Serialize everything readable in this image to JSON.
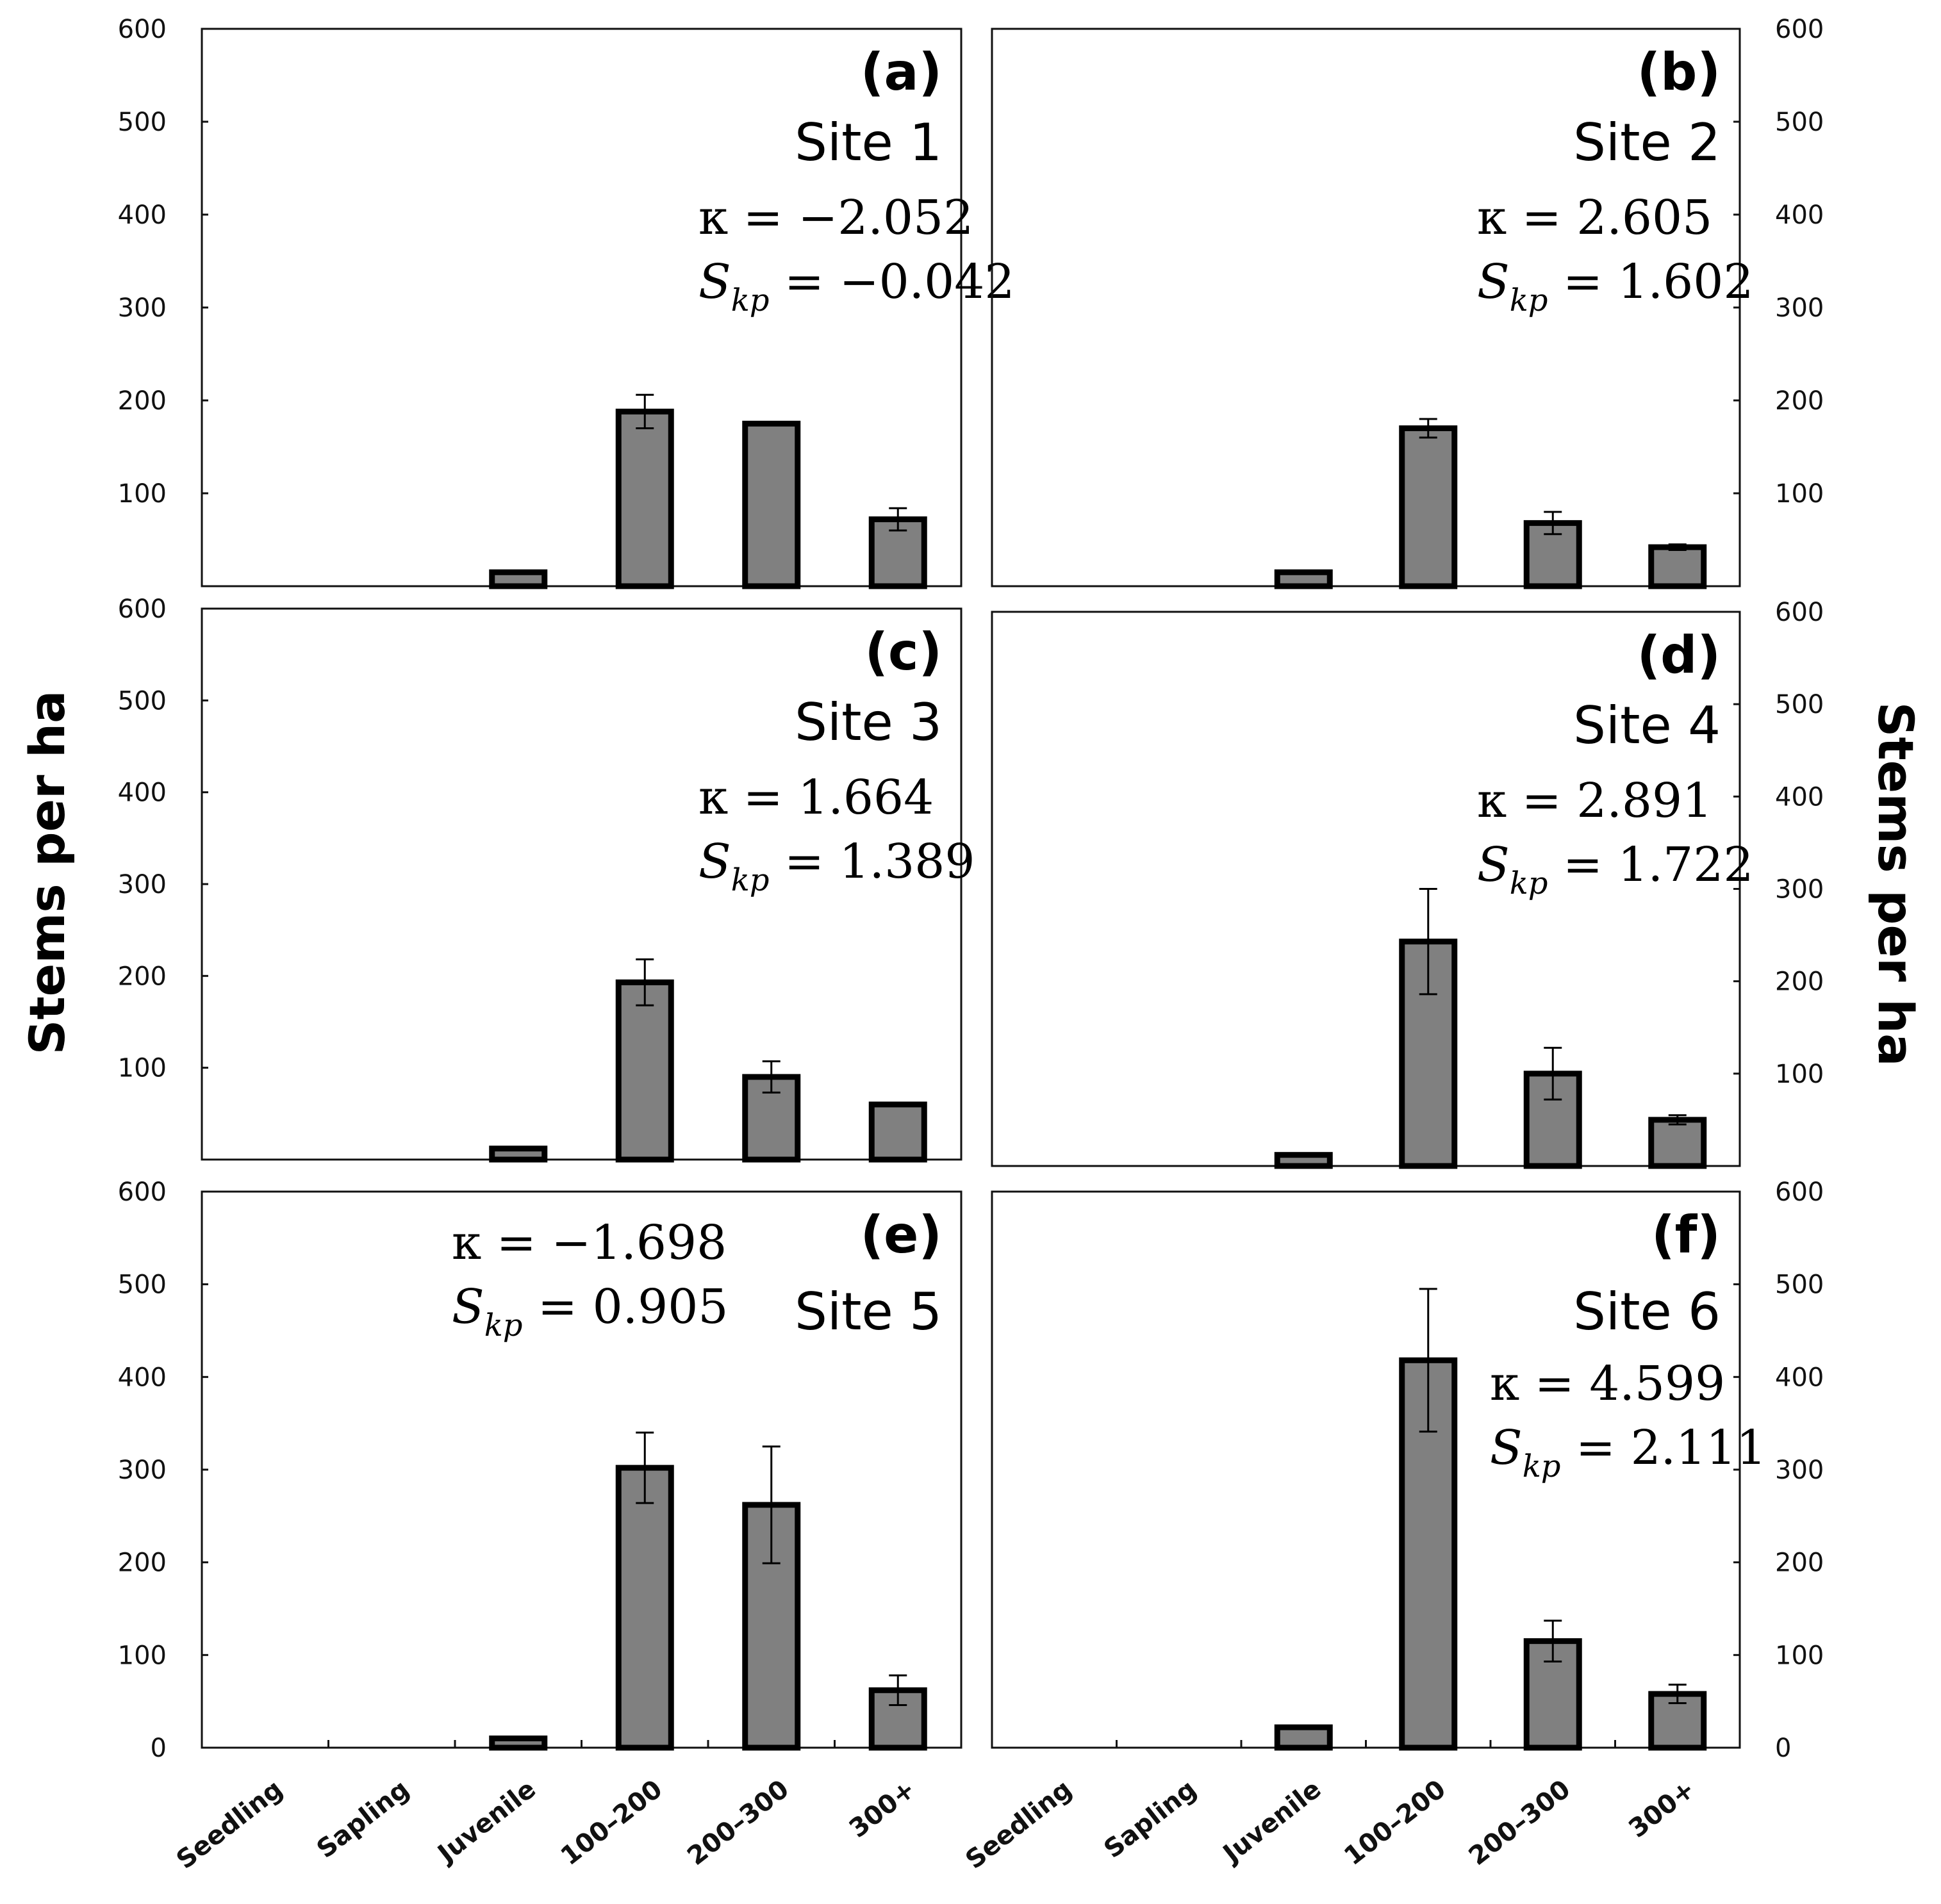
{
  "figure": {
    "ylabel_left": "Stems per ha",
    "ylabel_right": "Stems per ha"
  },
  "chart_data": [
    {
      "type": "bar",
      "panel": "(a)",
      "title": "Site 1",
      "kappa_label": "κ = −2.052",
      "skp_symbol": "S",
      "skp_sub": "kp",
      "skp_value": " = −0.042",
      "categories": [
        "Seedling",
        "Sapling",
        "Juvenile",
        "100–200",
        "200–300",
        "300+"
      ],
      "values": [
        0,
        0,
        15,
        188,
        175,
        72
      ],
      "errors": [
        0,
        0,
        0,
        18,
        0,
        12
      ],
      "ylim": [
        0,
        600
      ],
      "yticks": [
        "600",
        "500",
        "400",
        "300",
        "200",
        "100"
      ],
      "ylabel": "Stems per ha",
      "xlabel": ""
    },
    {
      "type": "bar",
      "panel": "(b)",
      "title": "Site 2",
      "kappa_label": "κ = 2.605",
      "skp_symbol": "S",
      "skp_sub": "kp",
      "skp_value": " = 1.602",
      "categories": [
        "Seedling",
        "Sapling",
        "Juvenile",
        "100–200",
        "200–300",
        "300+"
      ],
      "values": [
        0,
        0,
        15,
        170,
        68,
        42
      ],
      "errors": [
        0,
        0,
        0,
        10,
        12,
        3
      ],
      "ylim": [
        0,
        600
      ],
      "yticks": [
        "600",
        "500",
        "400",
        "300",
        "200",
        "100"
      ],
      "ylabel": "Stems per ha",
      "xlabel": ""
    },
    {
      "type": "bar",
      "panel": "(c)",
      "title": "Site 3",
      "kappa_label": "κ = 1.664",
      "skp_symbol": "S",
      "skp_sub": "kp",
      "skp_value": " = 1.389",
      "categories": [
        "Seedling",
        "Sapling",
        "Juvenile",
        "100–200",
        "200–300",
        "300+"
      ],
      "values": [
        0,
        0,
        12,
        193,
        90,
        60
      ],
      "errors": [
        0,
        0,
        0,
        25,
        17,
        0
      ],
      "ylim": [
        0,
        600
      ],
      "yticks": [
        "600",
        "500",
        "400",
        "300",
        "200",
        "100"
      ],
      "ylabel": "Stems per ha",
      "xlabel": ""
    },
    {
      "type": "bar",
      "panel": "(d)",
      "title": "Site 4",
      "kappa_label": "κ = 2.891",
      "skp_symbol": "S",
      "skp_sub": "kp",
      "skp_value": " = 1.722",
      "categories": [
        "Seedling",
        "Sapling",
        "Juvenile",
        "100–200",
        "200–300",
        "300+"
      ],
      "values": [
        0,
        0,
        12,
        243,
        100,
        50
      ],
      "errors": [
        0,
        0,
        0,
        57,
        28,
        5
      ],
      "ylim": [
        0,
        600
      ],
      "yticks": [
        "600",
        "500",
        "400",
        "300",
        "200",
        "100"
      ],
      "ylabel": "Stems per ha",
      "xlabel": ""
    },
    {
      "type": "bar",
      "panel": "(e)",
      "title": "Site 5",
      "kappa_label": "κ = −1.698",
      "skp_symbol": "S",
      "skp_sub": "kp",
      "skp_value": " = 0.905",
      "categories": [
        "Seedling",
        "Sapling",
        "Juvenile",
        "100–200",
        "200–300",
        "300+"
      ],
      "values": [
        0,
        0,
        10,
        302,
        262,
        62
      ],
      "errors": [
        0,
        0,
        0,
        38,
        63,
        16
      ],
      "ylim": [
        0,
        600
      ],
      "yticks": [
        "600",
        "500",
        "400",
        "300",
        "200",
        "100",
        "0"
      ],
      "ylabel": "Stems per ha",
      "xlabel": ""
    },
    {
      "type": "bar",
      "panel": "(f)",
      "title": "Site 6",
      "kappa_label": "κ = 4.599",
      "skp_symbol": "S",
      "skp_sub": "kp",
      "skp_value": " = 2.111",
      "categories": [
        "Seedling",
        "Sapling",
        "Juvenile",
        "100–200",
        "200–300",
        "300+"
      ],
      "values": [
        0,
        0,
        22,
        418,
        115,
        58
      ],
      "errors": [
        0,
        0,
        0,
        77,
        22,
        10
      ],
      "ylim": [
        0,
        600
      ],
      "yticks": [
        "600",
        "500",
        "400",
        "300",
        "200",
        "100",
        "0"
      ],
      "ylabel": "Stems per ha",
      "xlabel": ""
    }
  ]
}
